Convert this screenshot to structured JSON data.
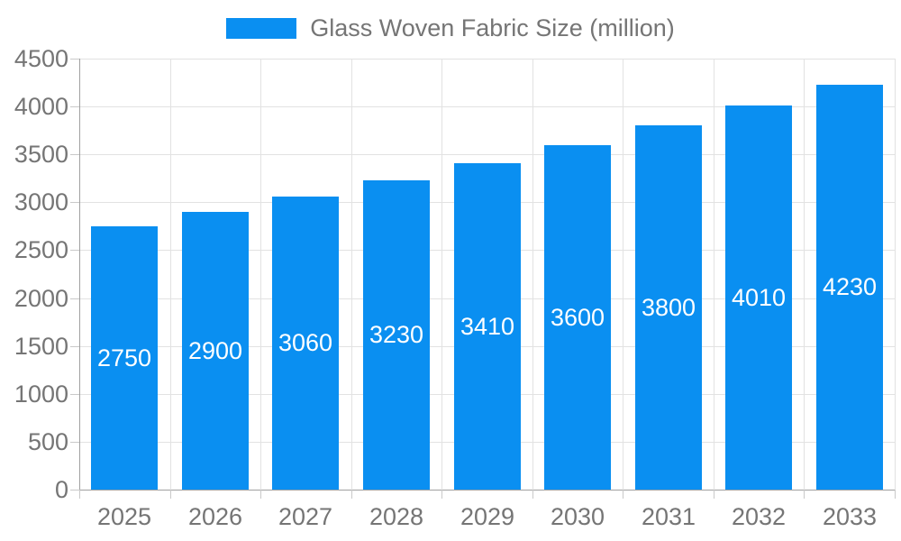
{
  "chart_data": {
    "type": "bar",
    "title": "Glass Woven Fabric Size (million)",
    "categories": [
      "2025",
      "2026",
      "2027",
      "2028",
      "2029",
      "2030",
      "2031",
      "2032",
      "2033"
    ],
    "values": [
      2750,
      2900,
      3060,
      3230,
      3410,
      3600,
      3800,
      4010,
      4230
    ],
    "series": [
      {
        "name": "Glass Woven Fabric Size (million)",
        "values": [
          2750,
          2900,
          3060,
          3230,
          3410,
          3600,
          3800,
          4010,
          4230
        ]
      }
    ],
    "xlabel": "",
    "ylabel": "",
    "ylim": [
      0,
      4500
    ],
    "ytick_step": 500,
    "yticks": [
      0,
      500,
      1000,
      1500,
      2000,
      2500,
      3000,
      3500,
      4000,
      4500
    ],
    "grid": true,
    "legend_position": "top-center",
    "value_labels": "inside-center",
    "colors": {
      "bar": "#0a8ff1",
      "grid": "#e2e2e2",
      "axis": "#a0a0a0",
      "tick": "#c9c9c9",
      "axis_text": "#757575",
      "legend_text": "#757575",
      "value_text": "#ffffff",
      "background": "#ffffff"
    }
  }
}
